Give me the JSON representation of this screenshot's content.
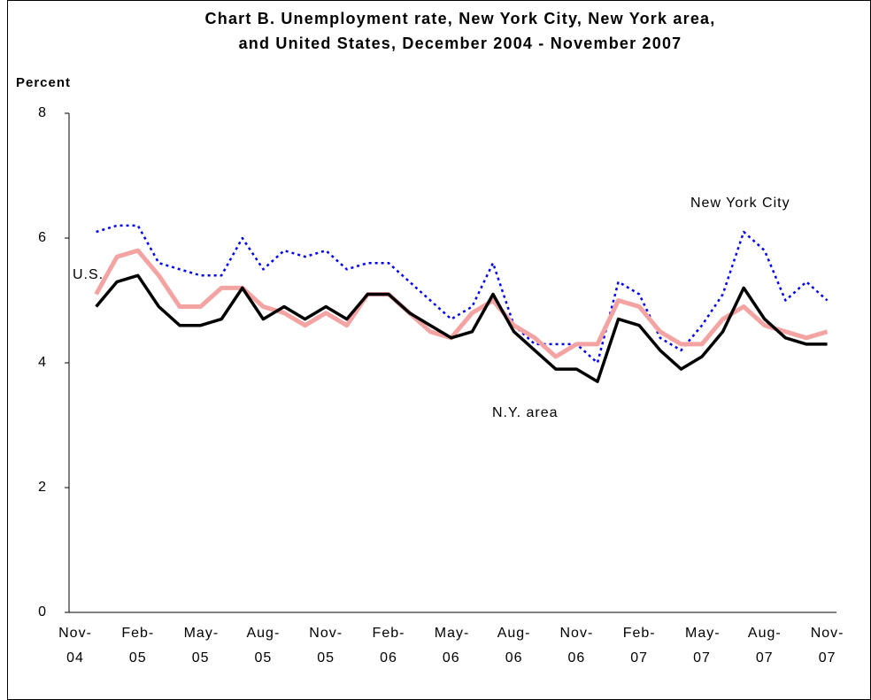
{
  "chart_data": {
    "type": "line",
    "title": [
      "Chart B.  Unemployment rate, New York City, New York area,",
      "and United States, December 2004 - November 2007"
    ],
    "y_label": "Percent",
    "categories": [
      "Nov-04",
      null,
      null,
      "Feb-05",
      null,
      null,
      "May-05",
      null,
      null,
      "Aug-05",
      null,
      null,
      "Nov-05",
      null,
      null,
      "Feb-06",
      null,
      null,
      "May-06",
      null,
      null,
      "Aug-06",
      null,
      null,
      "Nov-06",
      null,
      null,
      "Feb-07",
      null,
      null,
      "May-07",
      null,
      null,
      "Aug-07",
      null,
      null,
      "Nov-07"
    ],
    "series": [
      {
        "name": "New York City",
        "color": "#0000ff",
        "style": "dotted",
        "values": [
          null,
          6.1,
          6.2,
          6.2,
          5.6,
          5.5,
          5.4,
          5.4,
          6.0,
          5.5,
          5.8,
          5.7,
          5.8,
          5.5,
          5.6,
          5.6,
          5.3,
          5.0,
          4.7,
          4.9,
          5.6,
          4.6,
          4.3,
          4.3,
          4.3,
          4.0,
          5.3,
          5.1,
          4.4,
          4.2,
          4.6,
          5.1,
          6.1,
          5.8,
          5.0,
          5.3,
          5.0
        ]
      },
      {
        "name": "U.S.",
        "color": "#f4a3a3",
        "style": "solid",
        "values": [
          null,
          5.1,
          5.7,
          5.8,
          5.4,
          4.9,
          4.9,
          5.2,
          5.2,
          4.9,
          4.8,
          4.6,
          4.8,
          4.6,
          5.1,
          5.1,
          4.8,
          4.5,
          4.4,
          4.8,
          5.0,
          4.6,
          4.4,
          4.1,
          4.3,
          4.3,
          5.0,
          4.9,
          4.5,
          4.3,
          4.3,
          4.7,
          4.9,
          4.6,
          4.5,
          4.4,
          4.5
        ]
      },
      {
        "name": "N.Y. area",
        "color": "#000000",
        "style": "solid",
        "values": [
          null,
          4.9,
          5.3,
          5.4,
          4.9,
          4.6,
          4.6,
          4.7,
          5.2,
          4.7,
          4.9,
          4.7,
          4.9,
          4.7,
          5.1,
          5.1,
          4.8,
          4.6,
          4.4,
          4.5,
          5.1,
          4.5,
          4.2,
          3.9,
          3.9,
          3.7,
          4.7,
          4.6,
          4.2,
          3.9,
          4.1,
          4.5,
          5.2,
          4.7,
          4.4,
          4.3,
          4.3
        ]
      }
    ],
    "ylim": [
      0,
      8
    ],
    "yticks": [
      0,
      2,
      4,
      6,
      8
    ],
    "grid": false
  }
}
